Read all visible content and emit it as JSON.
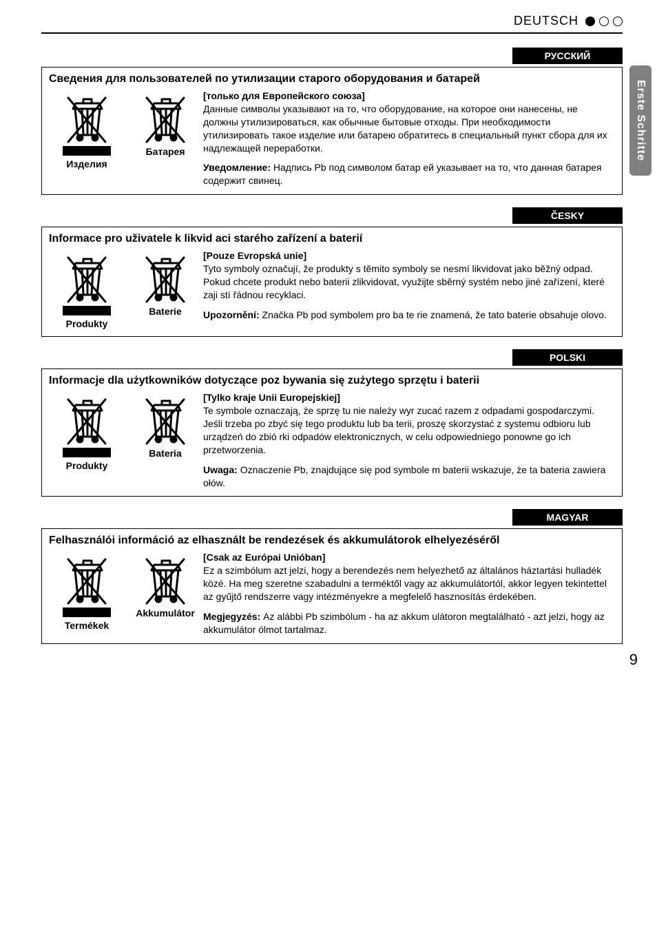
{
  "header": {
    "language": "DEUTSCH"
  },
  "side_tab": "Erste Schritte",
  "page_number": "9",
  "sections": [
    {
      "lang_label": "РУССКИЙ",
      "title": "Сведения для пользователей по утилизации старого оборудования и батарей",
      "icon_products": "Изделия",
      "icon_battery": "Батарея",
      "subhead": "[только для Европейского союза]",
      "body": "Данные символы указывают на то, что оборудование, на которое они нанесены, не должны утилизироваться, как обычные бытовые отходы. При необходимости утилизировать такое изделие или батарею обратитесь в специальный пункт сбора для их надлежащей переработки.",
      "notice_label": "Уведомление:",
      "notice_text": "Надпись Pb под символом батар ей указывает на то, что данная батарея содержит свинец."
    },
    {
      "lang_label": "ČESKY",
      "title": "Informace pro uživatele k likvid aci starého zařízení a baterií",
      "icon_products": "Produkty",
      "icon_battery": "Baterie",
      "subhead": "[Pouze Evropská unie]",
      "body": "Tyto symboly označují, že produkty s těmito symboly se nesmí likvidovat jako běžný odpad. Pokud chcete produkt nebo baterii zlikvidovat, využijte sběrný systém nebo jiné zařízení, které zaji stí řádnou recyklaci.",
      "notice_label": "Upozornění:",
      "notice_text": "Značka Pb pod symbolem pro ba te rie znamená, že tato baterie obsahuje olovo."
    },
    {
      "lang_label": "POLSKI",
      "title": "Informacje dla użytkowników dotyczące poz bywania się zużytego sprzętu i baterii",
      "icon_products": "Produkty",
      "icon_battery": "Bateria",
      "subhead": "[Tylko kraje Unii Europejskiej]",
      "body": "Te symbole oznaczają, że sprzę tu nie należy wyr zucać razem z odpadami gospodarczymi. Jeśli trzeba po zbyć się tego produktu lub ba terii, proszę skorzystać z systemu odbioru lub urządzeń do zbió rki odpadów elektronicznych, w celu odpowiedniego ponowne go ich przetworzenia.",
      "notice_label": "Uwaga:",
      "notice_text": "Oznaczenie Pb, znajdujące się pod symbole m baterii wskazuje, że ta bateria zawiera ołów."
    },
    {
      "lang_label": "MAGYAR",
      "title": "Felhasználói információ az elhasznált be rendezések és akkumulátorok elhelyezéséről",
      "icon_products": "Termékek",
      "icon_battery": "Akkumulátor",
      "subhead": "[Csak az Európai Unióban]",
      "body": "Ez a szimbólum azt jelzi, hogy a berendezés nem helyezhető az általános háztartási hulladék közé. Ha meg szeretne szabadulni a terméktől vagy az akkumulátortól, akkor legyen tekintettel az gyűjtő rendszerre vagy intézményekre a megfelelő hasznosítás érdekében.",
      "notice_label": "Megjegyzés:",
      "notice_text": "Az alábbi Pb szimbólum - ha az akkum ulátoron megtalálható - azt jelzi, hogy az akkumulátor ólmot tartalmaz."
    }
  ]
}
